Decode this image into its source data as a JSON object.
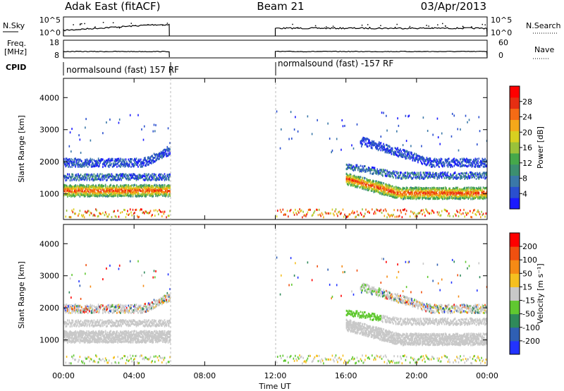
{
  "header": {
    "station": "Adak East (fitACF)",
    "beam": "Beam 21",
    "date": "03/Apr/2013"
  },
  "top_panels": {
    "nsky_label": "N.Sky",
    "nsearch_label": "N.Search",
    "nsky_ticks": [
      "10^5",
      "10^0"
    ],
    "nsearch_ticks": [
      "10^5",
      "10^0"
    ],
    "freq_label_line1": "Freq.",
    "freq_label_line2": "[MHz]",
    "freq_ticks": [
      "18",
      "8"
    ],
    "nave_label": "Nave",
    "nave_ticks": [
      "60",
      "0"
    ],
    "cpid_label": "CPID",
    "cpid_modes": [
      {
        "label": "normalsound (fast) 157 RF",
        "start_h": 0,
        "end_h": 6
      },
      {
        "label": "normalsound (fast) -157 RF",
        "start_h": 12,
        "end_h": 24
      }
    ]
  },
  "chart_data": [
    {
      "type": "heatmap",
      "name": "power",
      "ylabel": "Slant Range [km]",
      "xlabel": "Time UT",
      "x_ticks": [
        "00:00",
        "04:00",
        "08:00",
        "12:00",
        "16:00",
        "20:00",
        "00:00"
      ],
      "x_tick_hours": [
        0,
        4,
        8,
        12,
        16,
        20,
        24
      ],
      "y_ticks": [
        1000,
        2000,
        3000,
        4000
      ],
      "ylim": [
        200,
        4600
      ],
      "xlim_hours": [
        0,
        24
      ],
      "data_gaps_hours": [
        [
          6,
          12
        ]
      ],
      "colorbar": {
        "label": "Power [dB]",
        "ticks": [
          "4",
          "8",
          "12",
          "16",
          "20",
          "24",
          "28"
        ],
        "colors": [
          "#1a1aff",
          "#2a4fcf",
          "#3a78a8",
          "#3c8f70",
          "#45a84a",
          "#9ac23a",
          "#d8d020",
          "#f5a81a",
          "#f56b15",
          "#e62e12",
          "#ff0000"
        ]
      },
      "bands": [
        {
          "label": "scatter 1000 km",
          "range_km": [
            1000,
            1300
          ],
          "hours": [
            [
              0,
              6
            ],
            [
              16,
              24
            ]
          ],
          "level_db": 26
        },
        {
          "label": "scatter 2000 km",
          "range_km": [
            1800,
            2200
          ],
          "hours": [
            [
              0,
              6
            ],
            [
              17,
              24
            ]
          ],
          "level_db": 6
        }
      ]
    },
    {
      "type": "heatmap",
      "name": "velocity",
      "ylabel": "Slant Range [km]",
      "xlabel": "Time UT",
      "x_ticks": [
        "00:00",
        "04:00",
        "08:00",
        "12:00",
        "16:00",
        "20:00",
        "00:00"
      ],
      "x_tick_hours": [
        0,
        4,
        8,
        12,
        16,
        20,
        24
      ],
      "y_ticks": [
        1000,
        2000,
        3000,
        4000
      ],
      "ylim": [
        200,
        4600
      ],
      "xlim_hours": [
        0,
        24
      ],
      "data_gaps_hours": [
        [
          6,
          12
        ]
      ],
      "colorbar": {
        "label": "Velocity [m s⁻¹]",
        "ticks": [
          "200",
          "100",
          "50",
          "15",
          "-15",
          "-50",
          "-100",
          "-200"
        ],
        "colors": [
          "#2233ff",
          "#2f5fb3",
          "#2f8a5a",
          "#60c830",
          "#c8c8c8",
          "#f5c020",
          "#f58a15",
          "#f05010",
          "#ff0000"
        ]
      }
    }
  ]
}
